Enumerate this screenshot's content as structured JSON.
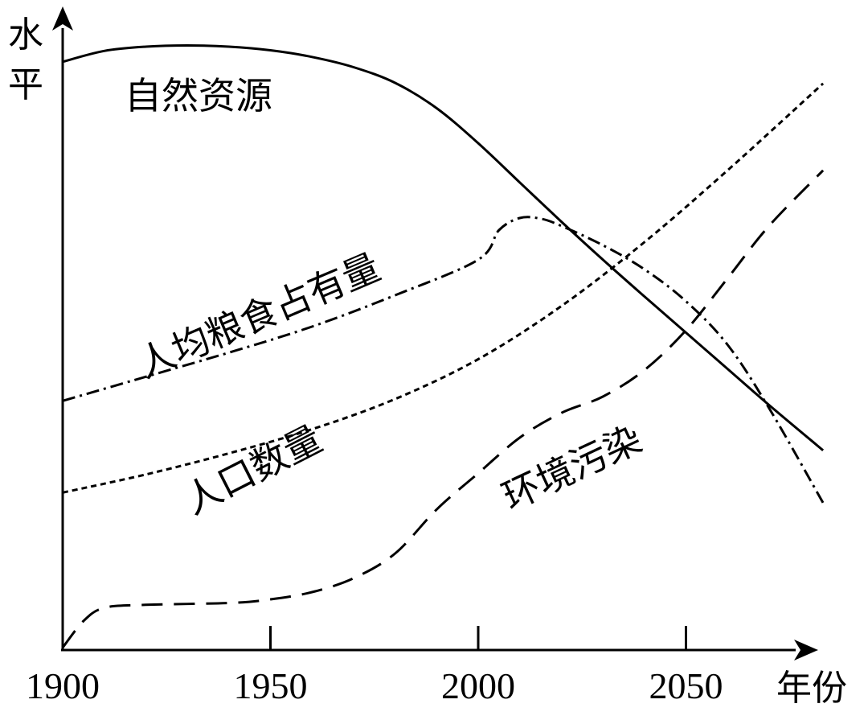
{
  "chart_data": {
    "type": "line",
    "title": "",
    "xlabel": "年份",
    "ylabel": "水平",
    "xlim": [
      1900,
      2087
    ],
    "ylim": [
      0,
      100
    ],
    "x_ticks": [
      1900,
      1950,
      2000,
      2050
    ],
    "x_tick_labels": [
      "1900",
      "1950",
      "2000",
      "2050"
    ],
    "grid": false,
    "legend": "none",
    "series": [
      {
        "name": "自然资源",
        "style": "solid",
        "color": "#000000",
        "x": [
          1900,
          1910,
          1920,
          1930,
          1940,
          1950,
          1960,
          1970,
          1980,
          1990,
          2000,
          2010,
          2020,
          2030,
          2040,
          2050,
          2060,
          2070,
          2083
        ],
        "y": [
          97.5,
          99.3,
          100.0,
          100.2,
          100.0,
          99.4,
          98.3,
          96.6,
          94.0,
          89.8,
          84.0,
          77.5,
          71.0,
          64.7,
          58.6,
          52.6,
          46.6,
          40.6,
          33.1
        ]
      },
      {
        "name": "人均粮食占有量",
        "style": "dashdot",
        "color": "#000000",
        "x": [
          1900,
          1920,
          1940,
          1960,
          1980,
          2000,
          2005,
          2010,
          2015,
          2020,
          2030,
          2040,
          2050,
          2060,
          2070,
          2083
        ],
        "y": [
          41.3,
          45.3,
          49.3,
          53.6,
          58.8,
          64.7,
          69.6,
          71.6,
          71.5,
          70.3,
          67.1,
          63.1,
          57.8,
          50.6,
          40.1,
          24.4
        ]
      },
      {
        "name": "人口数量",
        "style": "dotted",
        "color": "#000000",
        "x": [
          1900,
          1920,
          1940,
          1960,
          1980,
          2000,
          2020,
          2040,
          2060,
          2083
        ],
        "y": [
          26.1,
          29.1,
          32.6,
          36.6,
          41.6,
          48.2,
          57.0,
          67.6,
          79.5,
          93.9
        ]
      },
      {
        "name": "环境污染",
        "style": "dashed",
        "color": "#000000",
        "x": [
          1900,
          1905,
          1910,
          1920,
          1940,
          1950,
          1960,
          1970,
          1980,
          1990,
          2000,
          2010,
          2020,
          2030,
          2040,
          2050,
          2060,
          2070,
          2083
        ],
        "y": [
          0.4,
          4.8,
          7.0,
          7.5,
          7.8,
          8.4,
          9.6,
          11.9,
          16.0,
          23.3,
          29.3,
          35.2,
          39.3,
          42.0,
          46.4,
          53.0,
          61.6,
          70.3,
          79.5
        ]
      }
    ],
    "annotations": [
      {
        "series": "自然资源",
        "text": "自然资源"
      },
      {
        "series": "人均粮食占有量",
        "text": "人均粮食占有量"
      },
      {
        "series": "人口数量",
        "text": "人口数量"
      },
      {
        "series": "环境污染",
        "text": "环境污染"
      }
    ]
  }
}
